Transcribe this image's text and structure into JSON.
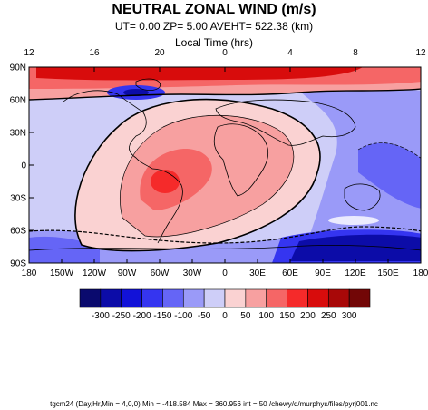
{
  "chart_data": {
    "type": "heatmap",
    "title": "NEUTRAL ZONAL WIND (m/s)",
    "subtitle": "UT=  0.00 ZP=  5.00 AVEHT= 522.38 (km)",
    "top_axis_label": "Local Time (hrs)",
    "top_ticks": [
      "12",
      "16",
      "20",
      "0",
      "4",
      "8",
      "12"
    ],
    "x_ticks": [
      "180",
      "150W",
      "120W",
      "90W",
      "60W",
      "30W",
      "0",
      "30E",
      "60E",
      "90E",
      "120E",
      "150E",
      "180"
    ],
    "y_ticks": [
      "90N",
      "60N",
      "30N",
      "0",
      "30S",
      "60S",
      "90S"
    ],
    "x_range": [
      -180,
      180
    ],
    "y_range": [
      -90,
      90
    ],
    "colorbar": {
      "labels": [
        "-300",
        "-250",
        "-200",
        "-150",
        "-100",
        "-50",
        "0",
        "50",
        "100",
        "150",
        "200",
        "250",
        "300"
      ],
      "colors": [
        "#0a0a6e",
        "#0c0ca8",
        "#1212d8",
        "#3535f0",
        "#6565f6",
        "#9a9af8",
        "#ceceF8",
        "#fad2d2",
        "#f7a0a0",
        "#f56666",
        "#f52a2a",
        "#d80c0c",
        "#a80808",
        "#720606"
      ]
    },
    "field_summary": {
      "min": -418.584,
      "max": 360.956,
      "interval": 50
    },
    "footer": "tgcm24  (Day,Hr,Min = 4,0,0) Min = -418.584  Max  = 360.956  int = 50 /chewy/d/murphys/files/pyrj001.nc"
  }
}
